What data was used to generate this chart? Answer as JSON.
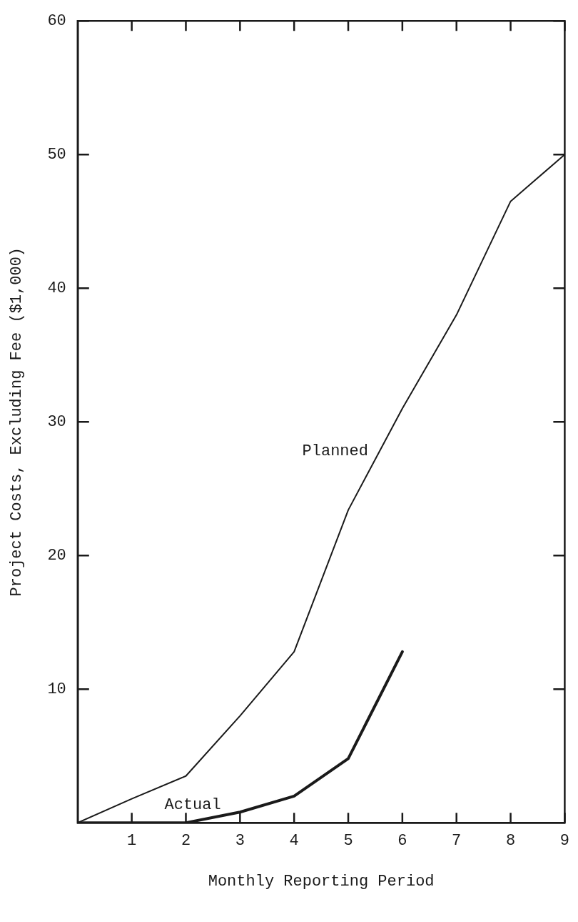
{
  "chart_data": {
    "type": "line",
    "xlabel": "Monthly Reporting Period",
    "ylabel": "Project Costs, Excluding Fee ($1,000)",
    "x": [
      0,
      1,
      2,
      3,
      4,
      5,
      6,
      7,
      8,
      9
    ],
    "series": [
      {
        "name": "Planned",
        "color": "#1a1a1a",
        "values": [
          0,
          1.8,
          3.5,
          8,
          12.8,
          23.4,
          31,
          38,
          46.5,
          50
        ]
      },
      {
        "name": "Actual",
        "color": "#1a1a1a",
        "x": [
          0,
          2,
          3,
          4,
          5,
          6
        ],
        "values": [
          0,
          0,
          0.8,
          2,
          4.8,
          12.8
        ]
      }
    ],
    "xlim": [
      0,
      9
    ],
    "xticks": [
      1,
      2,
      3,
      4,
      5,
      6,
      7,
      8,
      9
    ],
    "ylim": [
      0,
      60
    ],
    "yticks": [
      10,
      20,
      30,
      40,
      50,
      60
    ],
    "grid": false,
    "legend": false,
    "marker": "none",
    "line_style": "solid"
  }
}
